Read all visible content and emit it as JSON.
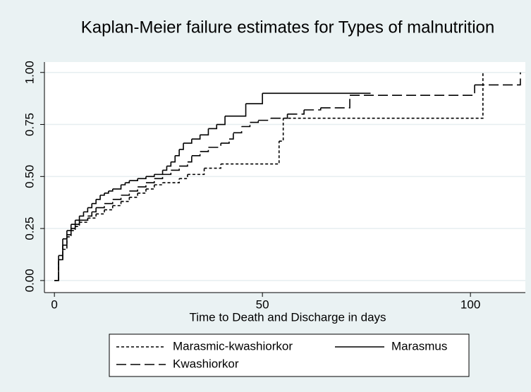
{
  "chart_data": {
    "type": "step",
    "title": "Kaplan-Meier failure estimates for Types of malnutrition",
    "x_label": "Time to Death and Discharge in days",
    "xlim": [
      -2.4,
      113.2
    ],
    "xticks": [
      0,
      50,
      100
    ],
    "ylim": [
      -0.058,
      1.05
    ],
    "yticks": [
      {
        "value": 0,
        "label": "0.00"
      },
      {
        "value": 0.25,
        "label": "0.25"
      },
      {
        "value": 0.5,
        "label": "0.50"
      },
      {
        "value": 0.75,
        "label": "0.75"
      },
      {
        "value": 1,
        "label": "1.00"
      }
    ],
    "grid": true,
    "legend": "bottom",
    "series": [
      {
        "name": "Marasmic-kwashiorkor",
        "color": "#000000",
        "dash": "short",
        "x": [
          0,
          1,
          2,
          3,
          4,
          5,
          6,
          8,
          10,
          12,
          14,
          16,
          18,
          20,
          22,
          24,
          26,
          30,
          32,
          36,
          40,
          54,
          55,
          103
        ],
        "values": [
          0,
          0.1,
          0.15,
          0.21,
          0.24,
          0.26,
          0.28,
          0.3,
          0.32,
          0.34,
          0.36,
          0.38,
          0.4,
          0.42,
          0.44,
          0.46,
          0.47,
          0.49,
          0.51,
          0.54,
          0.56,
          0.67,
          0.78,
          1.0
        ]
      },
      {
        "name": "Marasmus",
        "color": "#000000",
        "dash": "solid",
        "x": [
          0,
          1,
          2,
          3,
          4,
          5,
          6,
          7,
          8,
          9,
          10,
          11,
          12,
          13,
          14,
          16,
          17,
          18,
          20,
          22,
          24,
          26,
          27,
          28,
          29,
          30,
          31,
          33,
          35,
          37,
          39,
          41,
          46,
          50,
          76
        ],
        "values": [
          0,
          0.12,
          0.2,
          0.24,
          0.27,
          0.29,
          0.31,
          0.33,
          0.35,
          0.37,
          0.39,
          0.41,
          0.42,
          0.43,
          0.44,
          0.46,
          0.47,
          0.48,
          0.49,
          0.5,
          0.51,
          0.53,
          0.55,
          0.57,
          0.6,
          0.63,
          0.66,
          0.68,
          0.7,
          0.73,
          0.75,
          0.79,
          0.85,
          0.9,
          0.9
        ]
      },
      {
        "name": "Kwashiorkor",
        "color": "#000000",
        "dash": "long",
        "x": [
          0,
          1,
          2,
          3,
          4,
          5,
          6,
          8,
          9,
          10,
          12,
          14,
          16,
          18,
          20,
          22,
          24,
          26,
          28,
          30,
          32,
          33,
          35,
          37,
          40,
          42,
          43,
          45,
          47,
          49,
          52,
          56,
          60,
          64,
          71,
          101,
          112
        ],
        "values": [
          0,
          0.1,
          0.17,
          0.22,
          0.25,
          0.27,
          0.29,
          0.31,
          0.33,
          0.35,
          0.37,
          0.39,
          0.41,
          0.43,
          0.45,
          0.47,
          0.49,
          0.51,
          0.53,
          0.55,
          0.57,
          0.6,
          0.62,
          0.64,
          0.66,
          0.68,
          0.71,
          0.74,
          0.76,
          0.77,
          0.78,
          0.8,
          0.82,
          0.83,
          0.89,
          0.94,
          1.0
        ]
      }
    ]
  }
}
